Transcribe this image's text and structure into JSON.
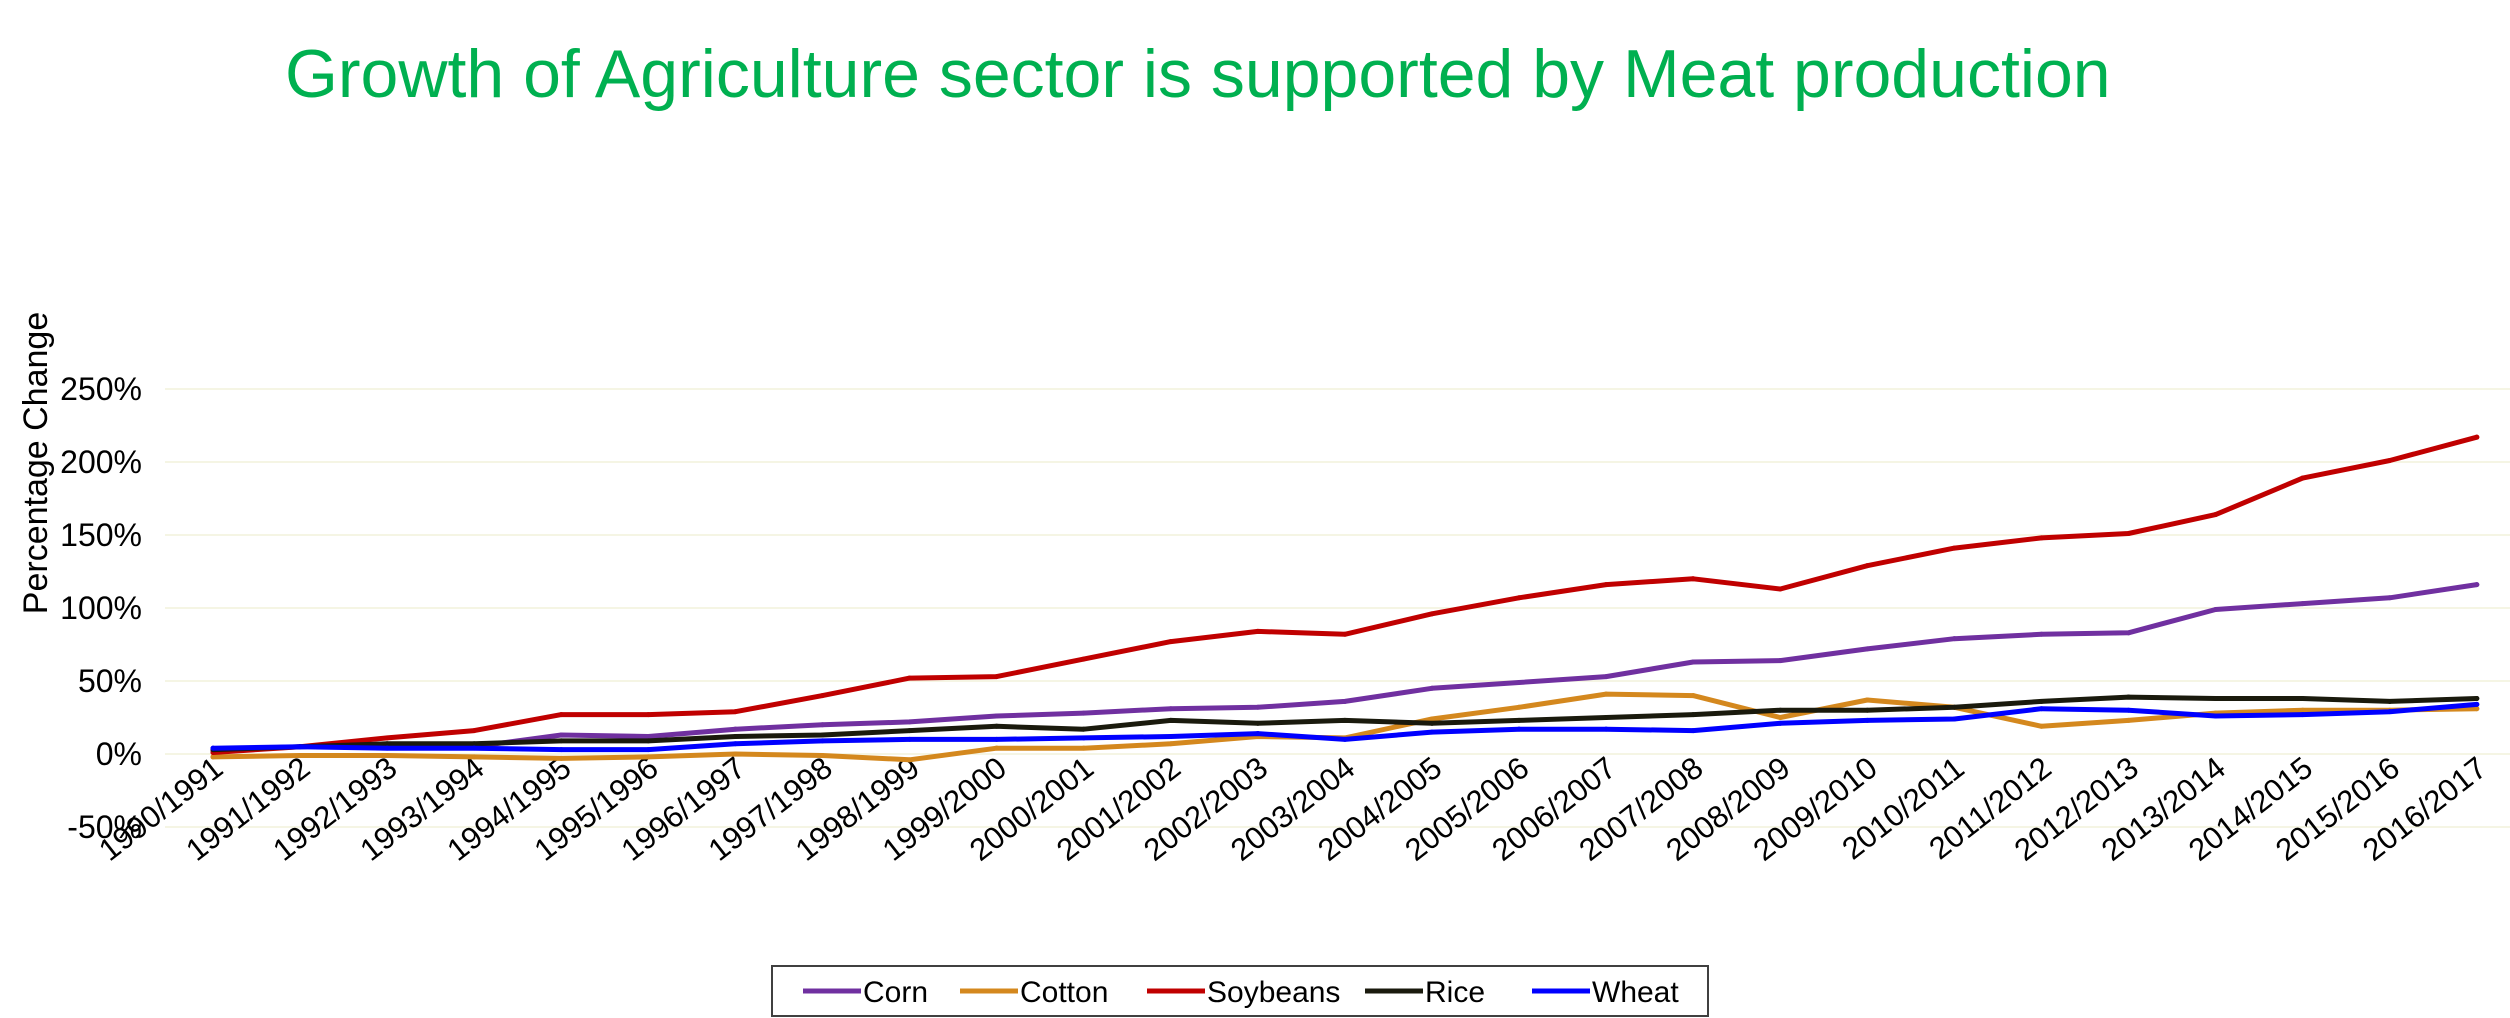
{
  "chart_data": {
    "type": "line",
    "title": "Growth of Agriculture sector is supported by Meat production",
    "title_color": "#00B050",
    "xlabel": "",
    "ylabel": "Percentage Change",
    "ylim": [
      -50,
      250
    ],
    "y_ticks": [
      "-50%",
      "0%",
      "50%",
      "100%",
      "150%",
      "200%",
      "250%"
    ],
    "y_tick_values": [
      -50,
      0,
      50,
      100,
      150,
      200,
      250
    ],
    "grid": true,
    "legend_position": "bottom",
    "categories": [
      "1990/1991",
      "1991/1992",
      "1992/1993",
      "1993/1994",
      "1994/1995",
      "1995/1996",
      "1996/1997",
      "1997/1998",
      "1998/1999",
      "1999/2000",
      "2000/2001",
      "2001/2002",
      "2002/2003",
      "2003/2004",
      "2004/2005",
      "2005/2006",
      "2006/2007",
      "2007/2008",
      "2008/2009",
      "2009/2010",
      "2010/2011",
      "2011/2012",
      "2012/2013",
      "2013/2014",
      "2014/2015",
      "2015/2016",
      "2016/2017"
    ],
    "series": [
      {
        "name": "Corn",
        "color": "#7030A0",
        "values": [
          2,
          5,
          6,
          5,
          13,
          12,
          17,
          20,
          22,
          26,
          28,
          31,
          32,
          36,
          45,
          49,
          53,
          63,
          64,
          72,
          79,
          82,
          83,
          99,
          103,
          107,
          116
        ]
      },
      {
        "name": "Cotton",
        "color": "#D4881E",
        "values": [
          -2,
          -1,
          -1,
          -2,
          -3,
          -2,
          0,
          -1,
          -4,
          4,
          4,
          7,
          12,
          11,
          24,
          32,
          41,
          40,
          25,
          37,
          32,
          19,
          23,
          28,
          30,
          30,
          31
        ]
      },
      {
        "name": "Soybeans",
        "color": "#C00000",
        "values": [
          1,
          5,
          11,
          16,
          27,
          27,
          29,
          40,
          52,
          53,
          65,
          77,
          84,
          82,
          96,
          107,
          116,
          120,
          113,
          129,
          141,
          148,
          151,
          164,
          189,
          201,
          217
        ]
      },
      {
        "name": "Rice",
        "color": "#1A1A0D",
        "values": [
          3,
          5,
          7,
          7,
          9,
          9,
          12,
          13,
          16,
          19,
          17,
          23,
          21,
          23,
          21,
          23,
          25,
          27,
          30,
          30,
          32,
          36,
          39,
          38,
          38,
          36,
          38
        ]
      },
      {
        "name": "Wheat",
        "color": "#0000FF",
        "values": [
          4,
          5,
          4,
          4,
          3,
          3,
          7,
          9,
          10,
          10,
          11,
          12,
          14,
          10,
          15,
          17,
          17,
          16,
          21,
          23,
          24,
          31,
          30,
          26,
          27,
          29,
          34
        ]
      }
    ]
  }
}
